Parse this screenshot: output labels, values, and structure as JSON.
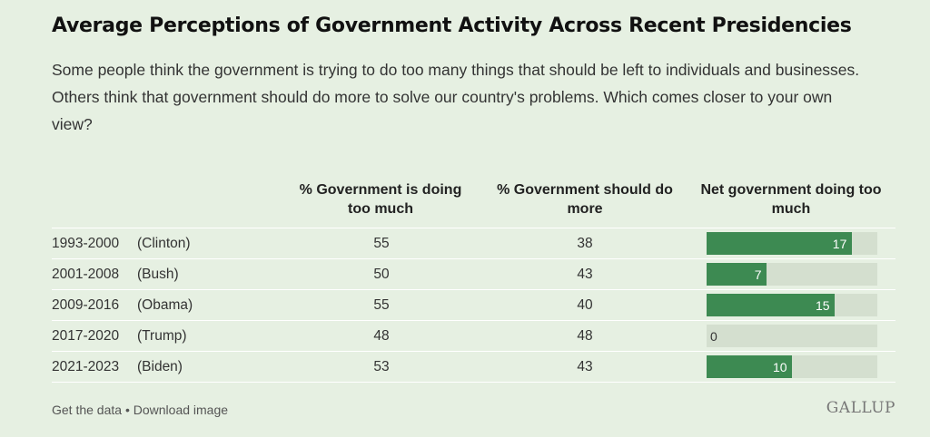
{
  "title": "Average Perceptions of Government Activity Across Recent Presidencies",
  "subtitle": "Some people think the government is trying to do too many things that should be left to individuals and businesses. Others think that government should do more to solve our country's problems. Which comes closer to your own view?",
  "columns": {
    "too_much": "% Government is doing too much",
    "do_more": "% Government should do more",
    "net": "Net government doing too much"
  },
  "chart_data": {
    "type": "table",
    "title": "Average Perceptions of Government Activity Across Recent Presidencies",
    "columns": [
      "% Government is doing too much",
      "% Government should do more",
      "Net government doing too much"
    ],
    "rows": [
      {
        "period": "1993-2000",
        "president": "(Clinton)",
        "too_much": 55,
        "do_more": 38,
        "net": 17
      },
      {
        "period": "2001-2008",
        "president": "(Bush)",
        "too_much": 50,
        "do_more": 43,
        "net": 7
      },
      {
        "period": "2009-2016",
        "president": "(Obama)",
        "too_much": 55,
        "do_more": 40,
        "net": 15
      },
      {
        "period": "2017-2020",
        "president": "(Trump)",
        "too_much": 48,
        "do_more": 48,
        "net": 0
      },
      {
        "period": "2021-2023",
        "president": "(Biden)",
        "too_much": 53,
        "do_more": 43,
        "net": 10
      }
    ],
    "net_bar_max": 20,
    "colors": {
      "bar": "#3d8a52",
      "track": "#d4dfcf",
      "background": "#e6f0e2"
    }
  },
  "footer": {
    "get_data": "Get the data",
    "separator": " • ",
    "download": "Download image"
  },
  "logo": "GALLUP"
}
